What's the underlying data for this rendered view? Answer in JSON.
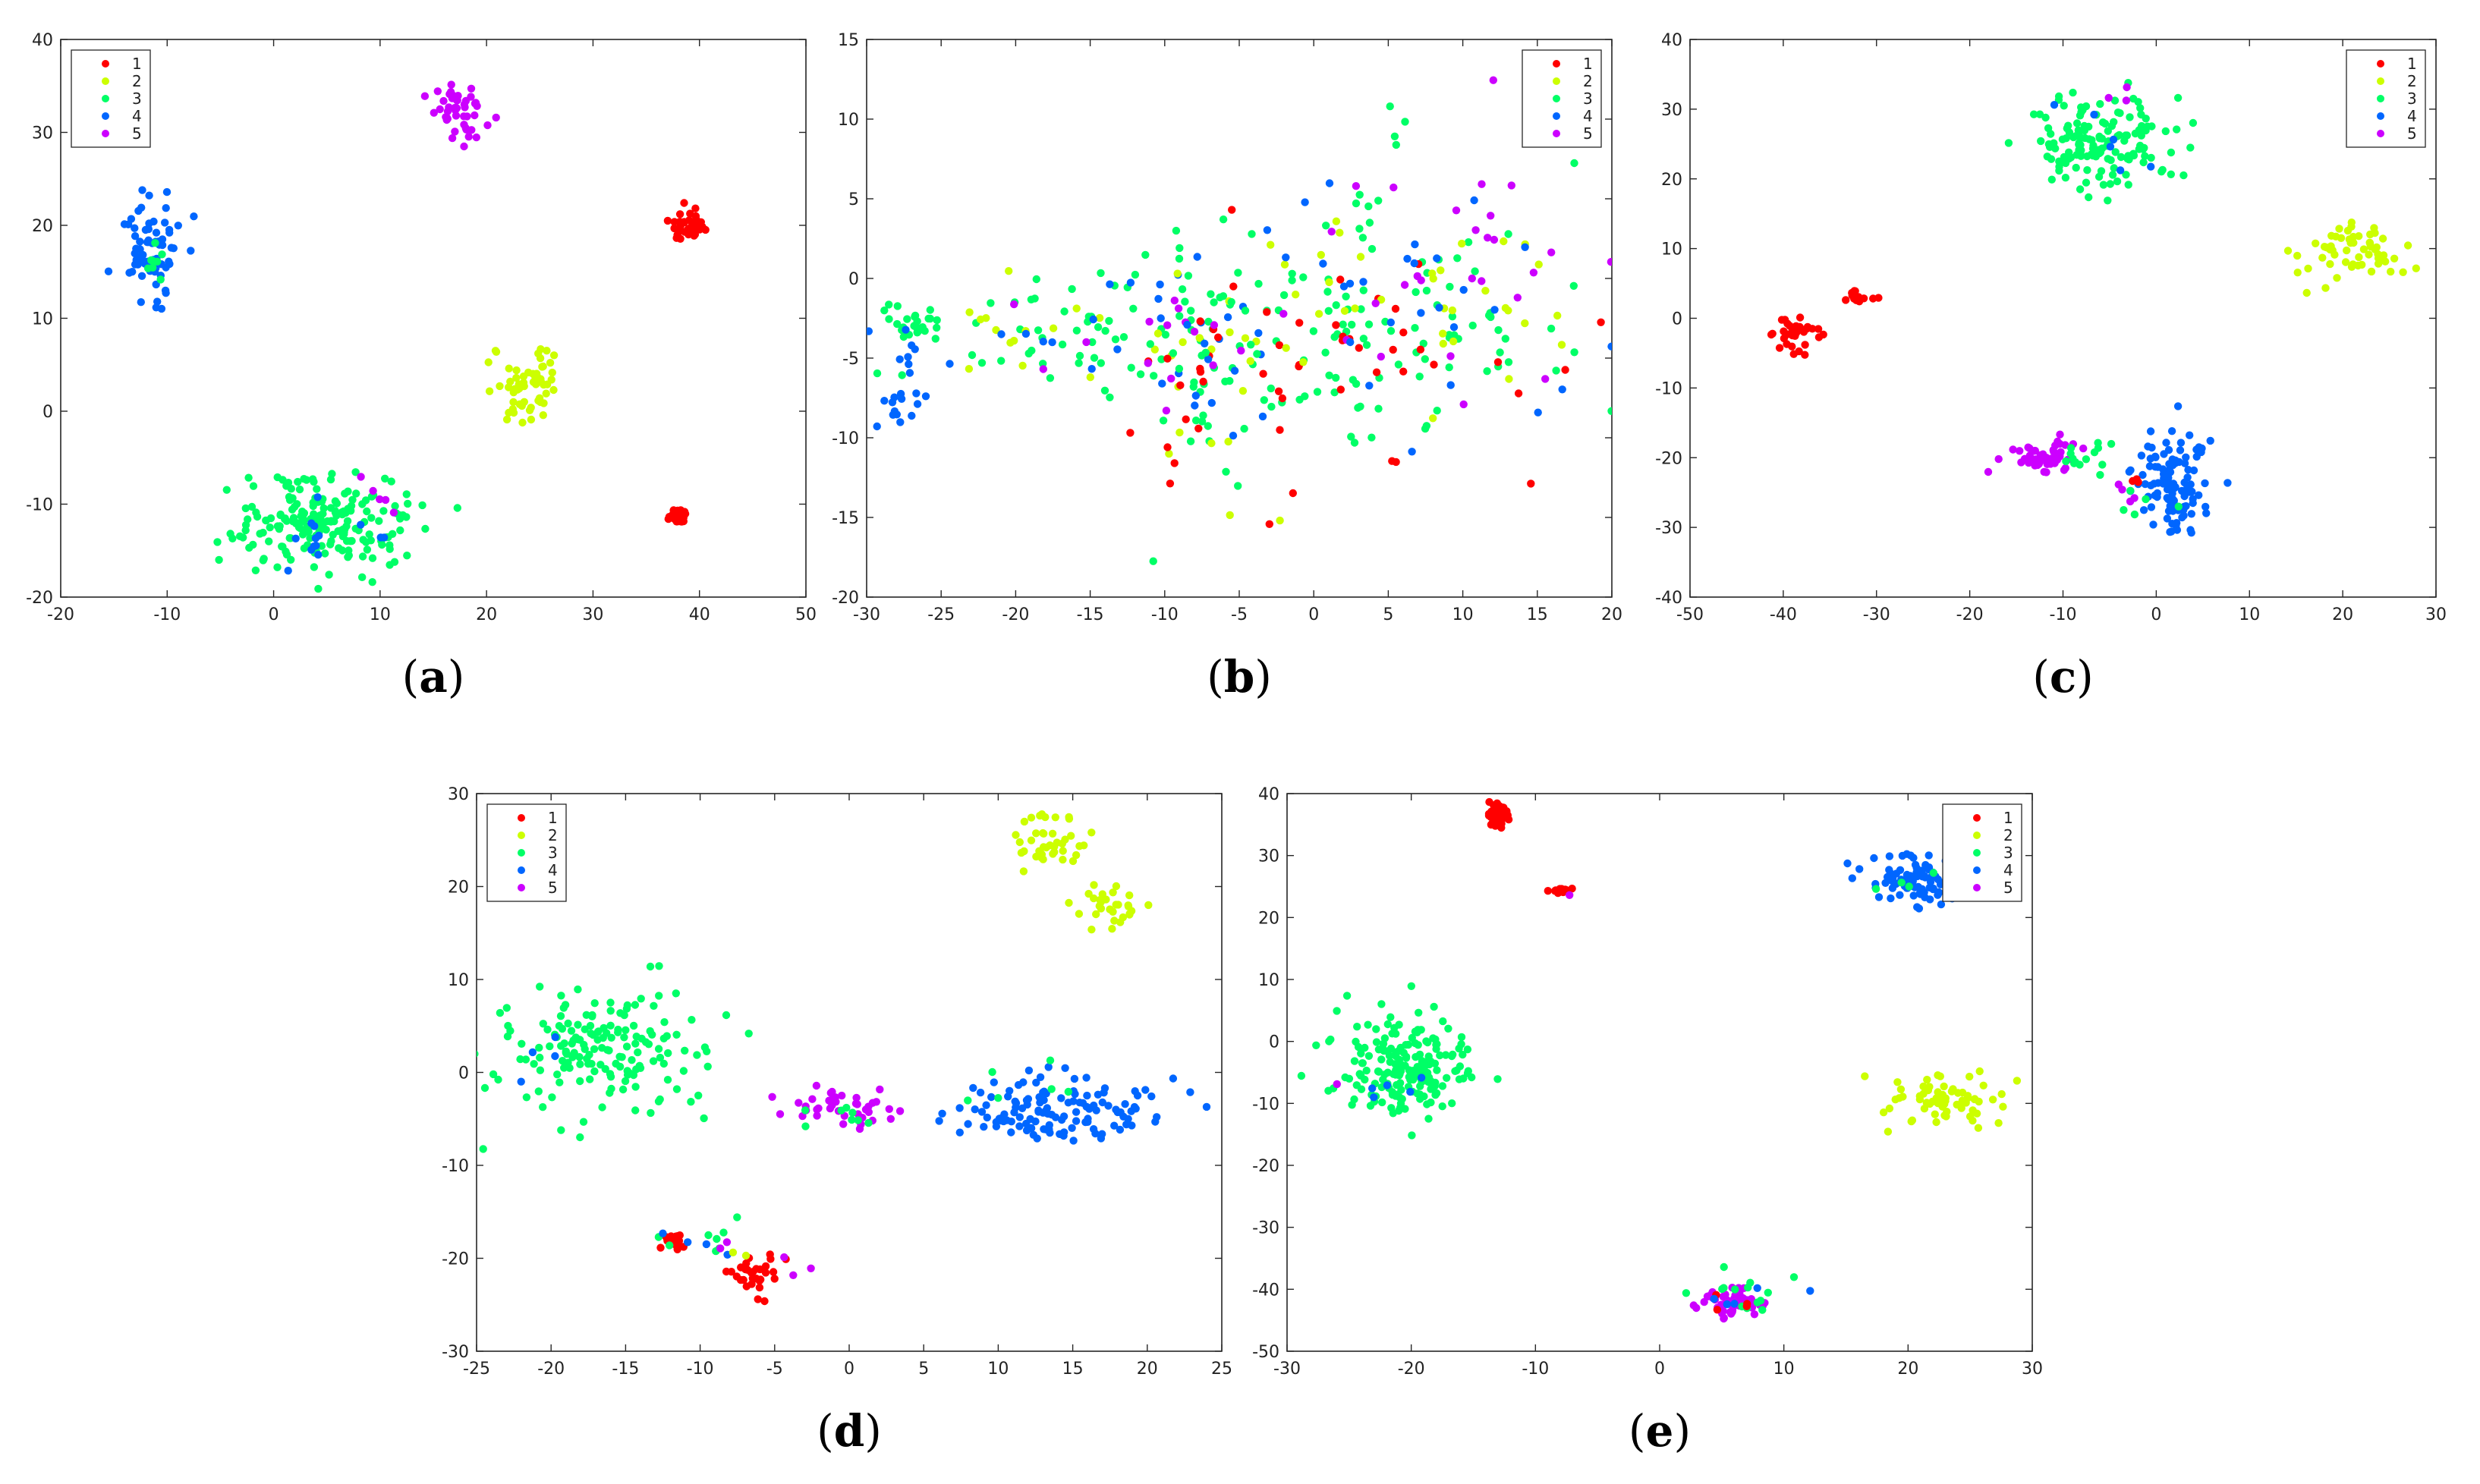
{
  "figure": {
    "legend_entries": [
      "1",
      "2",
      "3",
      "4",
      "5"
    ],
    "class_colors": [
      "#ff0000",
      "#ccff00",
      "#00ff66",
      "#0066ff",
      "#cc00ff"
    ]
  },
  "chart_data": [
    {
      "type": "scatter",
      "caption": "a",
      "legend_position": "top-left",
      "xlim": [
        -20,
        50
      ],
      "ylim": [
        -20,
        40
      ],
      "xticks": [
        -20,
        -10,
        0,
        10,
        20,
        30,
        40,
        50
      ],
      "yticks": [
        -20,
        -10,
        0,
        10,
        20,
        30,
        40
      ],
      "clusters": [
        {
          "cls": 5,
          "cx": 17.5,
          "cy": 32,
          "sx": 1.3,
          "sy": 1.6,
          "n": 45
        },
        {
          "cls": 1,
          "cx": 39,
          "cy": 20,
          "sx": 0.8,
          "sy": 0.8,
          "n": 40
        },
        {
          "cls": 4,
          "cx": -11.5,
          "cy": 18,
          "sx": 1.8,
          "sy": 2.7,
          "n": 70
        },
        {
          "cls": 3,
          "cx": -11,
          "cy": 16,
          "sx": 1.0,
          "sy": 1.5,
          "n": 8
        },
        {
          "cls": 2,
          "cx": 24,
          "cy": 3,
          "sx": 1.6,
          "sy": 2.3,
          "n": 60
        },
        {
          "cls": 1,
          "cx": 38,
          "cy": -11.2,
          "sx": 0.4,
          "sy": 0.4,
          "n": 28
        },
        {
          "cls": 3,
          "cx": 4.5,
          "cy": -12,
          "sx": 4.0,
          "sy": 2.4,
          "n": 200
        },
        {
          "cls": 4,
          "cx": 5,
          "cy": -13,
          "sx": 3.0,
          "sy": 2.0,
          "n": 14
        },
        {
          "cls": 5,
          "cx": 9.5,
          "cy": -9,
          "sx": 1.2,
          "sy": 1.4,
          "n": 5
        }
      ]
    },
    {
      "type": "scatter",
      "caption": "b",
      "legend_position": "top-right",
      "xlim": [
        -30,
        20
      ],
      "ylim": [
        -20,
        15
      ],
      "xticks": [
        -30,
        -25,
        -20,
        -15,
        -10,
        -5,
        0,
        5,
        10,
        15,
        20
      ],
      "yticks": [
        -20,
        -15,
        -10,
        -5,
        0,
        5,
        10,
        15
      ],
      "clusters": [
        {
          "cls": 3,
          "cx": -27,
          "cy": -3,
          "sx": 1.2,
          "sy": 0.6,
          "n": 25
        },
        {
          "cls": 4,
          "cx": -28,
          "cy": -8,
          "sx": 1.0,
          "sy": 0.6,
          "n": 14
        },
        {
          "cls": 4,
          "cx": -27,
          "cy": -5.5,
          "sx": 0.8,
          "sy": 1.0,
          "n": 6
        },
        {
          "cls": 3,
          "cx": -17,
          "cy": -3.5,
          "sx": 5.0,
          "sy": 2.0,
          "n": 55
        },
        {
          "cls": 2,
          "cx": -16,
          "cy": -3.5,
          "sx": 5.0,
          "sy": 2.0,
          "n": 18
        },
        {
          "cls": 4,
          "cx": -15,
          "cy": -3.5,
          "sx": 6.0,
          "sy": 2.2,
          "n": 20
        },
        {
          "cls": 5,
          "cx": -18,
          "cy": -3.5,
          "sx": 6.0,
          "sy": 2.0,
          "n": 6
        },
        {
          "cls": 3,
          "cx": -8,
          "cy": -5,
          "sx": 2.2,
          "sy": 4.0,
          "n": 40
        },
        {
          "cls": 2,
          "cx": -7,
          "cy": -6,
          "sx": 2.5,
          "sy": 4.0,
          "n": 15
        },
        {
          "cls": 1,
          "cx": -7,
          "cy": -6,
          "sx": 2.5,
          "sy": 3.5,
          "n": 12
        },
        {
          "cls": 5,
          "cx": -8,
          "cy": -4,
          "sx": 2.5,
          "sy": 4.0,
          "n": 8
        },
        {
          "cls": 4,
          "cx": -8,
          "cy": -5,
          "sx": 2.5,
          "sy": 4.0,
          "n": 12
        },
        {
          "cls": 3,
          "cx": 5,
          "cy": -3,
          "sx": 7.0,
          "sy": 4.0,
          "n": 110
        },
        {
          "cls": 1,
          "cx": 2,
          "cy": -5,
          "sx": 6.0,
          "sy": 4.0,
          "n": 40
        },
        {
          "cls": 2,
          "cx": 6,
          "cy": -2,
          "sx": 7.0,
          "sy": 4.0,
          "n": 35
        },
        {
          "cls": 5,
          "cx": 8,
          "cy": 0,
          "sx": 6.0,
          "sy": 4.0,
          "n": 28
        },
        {
          "cls": 4,
          "cx": 5,
          "cy": -1,
          "sx": 7.0,
          "sy": 4.5,
          "n": 30
        },
        {
          "cls": 3,
          "cx": 6,
          "cy": 9.5,
          "sx": 0.6,
          "sy": 0.4,
          "n": 4
        },
        {
          "cls": 5,
          "cx": 12,
          "cy": 12.5,
          "sx": 0.1,
          "sy": 0.1,
          "n": 1
        }
      ]
    },
    {
      "type": "scatter",
      "caption": "c",
      "legend_position": "top-right",
      "xlim": [
        -50,
        30
      ],
      "ylim": [
        -40,
        40
      ],
      "xticks": [
        -50,
        -40,
        -30,
        -20,
        -10,
        0,
        10,
        20,
        30
      ],
      "yticks": [
        -40,
        -30,
        -20,
        -10,
        0,
        10,
        20,
        30,
        40
      ],
      "clusters": [
        {
          "cls": 3,
          "cx": -6,
          "cy": 25,
          "sx": 4.0,
          "sy": 3.5,
          "n": 150
        },
        {
          "cls": 4,
          "cx": -5,
          "cy": 26,
          "sx": 3.0,
          "sy": 3.0,
          "n": 6
        },
        {
          "cls": 5,
          "cx": -4,
          "cy": 30,
          "sx": 1.5,
          "sy": 2.0,
          "n": 3
        },
        {
          "cls": 2,
          "cx": 21,
          "cy": 9.5,
          "sx": 3.0,
          "sy": 2.3,
          "n": 60
        },
        {
          "cls": 1,
          "cx": -38.5,
          "cy": -2,
          "sx": 1.3,
          "sy": 1.2,
          "n": 35
        },
        {
          "cls": 1,
          "cx": -32,
          "cy": 3,
          "sx": 0.9,
          "sy": 0.5,
          "n": 16
        },
        {
          "cls": 5,
          "cx": -12,
          "cy": -20,
          "sx": 2.0,
          "sy": 1.3,
          "n": 50
        },
        {
          "cls": 3,
          "cx": -7,
          "cy": -20,
          "sx": 2.0,
          "sy": 1.2,
          "n": 14
        },
        {
          "cls": 4,
          "cx": 1.5,
          "cy": -24,
          "sx": 2.2,
          "sy": 3.8,
          "n": 110
        },
        {
          "cls": 1,
          "cx": -2.5,
          "cy": -25,
          "sx": 0.8,
          "sy": 1.0,
          "n": 3
        },
        {
          "cls": 3,
          "cx": -1,
          "cy": -27,
          "sx": 1.5,
          "sy": 1.5,
          "n": 5
        },
        {
          "cls": 5,
          "cx": -3.5,
          "cy": -26,
          "sx": 1.0,
          "sy": 1.0,
          "n": 4
        }
      ]
    },
    {
      "type": "scatter",
      "caption": "d",
      "legend_position": "top-left",
      "xlim": [
        -25,
        25
      ],
      "ylim": [
        -30,
        30
      ],
      "xticks": [
        -25,
        -20,
        -15,
        -10,
        -5,
        0,
        5,
        10,
        15,
        20,
        25
      ],
      "yticks": [
        -30,
        -20,
        -10,
        0,
        10,
        20,
        30
      ],
      "clusters": [
        {
          "cls": 2,
          "cx": 13.5,
          "cy": 24.5,
          "sx": 1.3,
          "sy": 1.5,
          "n": 40
        },
        {
          "cls": 2,
          "cx": 17.5,
          "cy": 18,
          "sx": 1.4,
          "sy": 1.2,
          "n": 30
        },
        {
          "cls": 3,
          "cx": -16.5,
          "cy": 3,
          "sx": 4.0,
          "sy": 3.5,
          "n": 170
        },
        {
          "cls": 4,
          "cx": -17,
          "cy": 2,
          "sx": 3.0,
          "sy": 2.0,
          "n": 4
        },
        {
          "cls": 5,
          "cx": 0,
          "cy": -3.5,
          "sx": 1.6,
          "sy": 1.0,
          "n": 40
        },
        {
          "cls": 3,
          "cx": -1,
          "cy": -4.5,
          "sx": 1.5,
          "sy": 1.0,
          "n": 8
        },
        {
          "cls": 4,
          "cx": 14,
          "cy": -4,
          "sx": 3.6,
          "sy": 1.8,
          "n": 130
        },
        {
          "cls": 3,
          "cx": 12,
          "cy": -2,
          "sx": 2.5,
          "sy": 1.5,
          "n": 6
        },
        {
          "cls": 1,
          "cx": -11.5,
          "cy": -18,
          "sx": 0.5,
          "sy": 0.4,
          "n": 20
        },
        {
          "cls": 1,
          "cx": -6.5,
          "cy": -21.5,
          "sx": 1.0,
          "sy": 1.1,
          "n": 30
        },
        {
          "cls": 3,
          "cx": -10,
          "cy": -19,
          "sx": 2.5,
          "sy": 1.5,
          "n": 8
        },
        {
          "cls": 5,
          "cx": -6,
          "cy": -21,
          "sx": 2.0,
          "sy": 1.5,
          "n": 5
        },
        {
          "cls": 4,
          "cx": -10,
          "cy": -18.5,
          "sx": 1.5,
          "sy": 1.0,
          "n": 4
        },
        {
          "cls": 2,
          "cx": -7,
          "cy": -19,
          "sx": 0.6,
          "sy": 0.6,
          "n": 2
        }
      ]
    },
    {
      "type": "scatter",
      "caption": "e",
      "legend_position": "top-right",
      "xlim": [
        -30,
        30
      ],
      "ylim": [
        -50,
        40
      ],
      "xticks": [
        -30,
        -20,
        -10,
        0,
        10,
        20,
        30
      ],
      "yticks": [
        -50,
        -40,
        -30,
        -20,
        -10,
        0,
        10,
        20,
        30,
        40
      ],
      "clusters": [
        {
          "cls": 1,
          "cx": -13,
          "cy": 36.5,
          "sx": 0.5,
          "sy": 0.7,
          "n": 40
        },
        {
          "cls": 1,
          "cx": -8,
          "cy": 24.2,
          "sx": 0.4,
          "sy": 0.3,
          "n": 18
        },
        {
          "cls": 5,
          "cx": -7.5,
          "cy": 24,
          "sx": 0.2,
          "sy": 0.2,
          "n": 1
        },
        {
          "cls": 4,
          "cx": 21,
          "cy": 26,
          "sx": 2.2,
          "sy": 2.2,
          "n": 110
        },
        {
          "cls": 3,
          "cx": 21,
          "cy": 25,
          "sx": 1.5,
          "sy": 1.5,
          "n": 4
        },
        {
          "cls": 3,
          "cx": -20.5,
          "cy": -4,
          "sx": 2.8,
          "sy": 3.8,
          "n": 190
        },
        {
          "cls": 4,
          "cx": -21,
          "cy": -8,
          "sx": 1.5,
          "sy": 1.5,
          "n": 5
        },
        {
          "cls": 5,
          "cx": -26,
          "cy": -7,
          "sx": 0.3,
          "sy": 0.3,
          "n": 1
        },
        {
          "cls": 2,
          "cx": 23,
          "cy": -9.5,
          "sx": 2.3,
          "sy": 2.2,
          "n": 70
        },
        {
          "cls": 5,
          "cx": 6,
          "cy": -42,
          "sx": 1.3,
          "sy": 1.1,
          "n": 60
        },
        {
          "cls": 3,
          "cx": 6.5,
          "cy": -41,
          "sx": 2.0,
          "sy": 1.6,
          "n": 14
        },
        {
          "cls": 1,
          "cx": 6,
          "cy": -42.5,
          "sx": 1.2,
          "sy": 1.0,
          "n": 4
        },
        {
          "cls": 4,
          "cx": 6,
          "cy": -41,
          "sx": 1.5,
          "sy": 1.2,
          "n": 5
        }
      ]
    }
  ]
}
